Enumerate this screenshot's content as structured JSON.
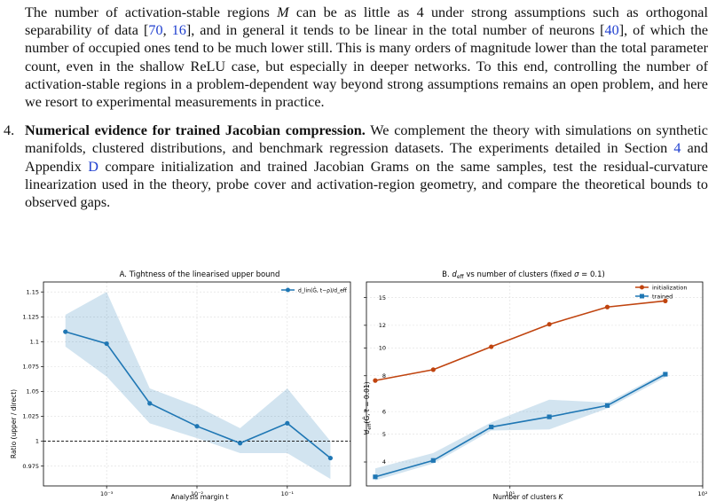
{
  "para1": {
    "s1": "The number of activation-stable regions ",
    "M": "M",
    "s2": " can be as little as 4 under strong assumptions such as orthogonal separability of data [",
    "r70": "70",
    "comma": ", ",
    "r16": "16",
    "s3": "], and in general it tends to be linear in the total number of neurons [",
    "r40": "40",
    "s4": "], of which the number of occupied ones tend to be much lower still. This is many orders of magnitude lower than the total parameter count, even in the shallow ReLU case, but especially in deeper networks. To this end, controlling the number of activation-stable regions in a problem-dependent way beyond strong assumptions remains an open problem, and here we resort to experimental measurements in practice."
  },
  "item4": {
    "number": "4.",
    "bold": "Numerical evidence for trained Jacobian compression.",
    "s1": " We complement the theory with simulations on synthetic manifolds, clustered distributions, and benchmark regression datasets. The experiments detailed in Section ",
    "sec": "4",
    "s2": " and Appendix ",
    "app": "D",
    "s3": " compare initialization and trained Jacobian Grams on the same samples, test the residual-curvature linearization used in the theory, probe cover and activation-region geometry, and compare the theoretical bounds to observed gaps."
  },
  "chart_data": [
    {
      "type": "line",
      "title": "A. Tightness of the linearised upper bound",
      "xlabel": "Analysis margin t",
      "ylabel": "Ratio (upper / direct)",
      "xscale": "log",
      "xlim": [
        0.0002,
        0.5
      ],
      "ylim": [
        0.955,
        1.16
      ],
      "yticks": [
        "0.975",
        "1",
        "1.025",
        "1.05",
        "1.075",
        "1.1",
        "1.125",
        "1.15"
      ],
      "xticks": [
        "10⁻³",
        "10⁻²",
        "10⁻¹"
      ],
      "grid": true,
      "legend_position": "top-right",
      "reference_line": 1.0,
      "series": [
        {
          "name": "d_lin(Ĝ, t−ρ)/d_eff",
          "color": "#1f77b4",
          "x": [
            0.00035,
            0.001,
            0.003,
            0.01,
            0.03,
            0.1,
            0.3
          ],
          "y": [
            1.11,
            1.098,
            1.038,
            1.015,
            0.998,
            1.018,
            0.983
          ],
          "lower": [
            1.095,
            1.065,
            1.018,
            1.003,
            0.988,
            0.988,
            0.962
          ],
          "upper": [
            1.127,
            1.15,
            1.053,
            1.035,
            1.013,
            1.053,
            1.0
          ]
        }
      ]
    },
    {
      "type": "line",
      "title": "B. d_eff vs number of clusters (fixed σ = 0.1)",
      "xlabel": "Number of clusters K",
      "ylabel": "d_eff(Ĝ, t = 0.01)",
      "xscale": "log",
      "yscale": "log",
      "xlim": [
        1.8,
        100
      ],
      "ylim": [
        3.3,
        17
      ],
      "yticks": [
        "4",
        "5",
        "6",
        "8",
        "10",
        "12",
        "15"
      ],
      "xticks": [
        "10¹",
        "10²"
      ],
      "grid": true,
      "legend_position": "top-right",
      "series": [
        {
          "name": "initialization",
          "color": "#c0440f",
          "marker": "circle",
          "x": [
            2,
            4,
            8,
            16,
            32,
            64
          ],
          "y": [
            7.7,
            8.4,
            10.1,
            12.1,
            13.9,
            14.6
          ]
        },
        {
          "name": "trained",
          "color": "#1f77b4",
          "marker": "square",
          "x": [
            2,
            4,
            8,
            16,
            32,
            64
          ],
          "y": [
            3.55,
            4.05,
            5.3,
            5.75,
            6.3,
            8.1
          ],
          "lower": [
            3.45,
            3.95,
            5.15,
            5.2,
            6.15,
            7.9
          ],
          "upper": [
            3.8,
            4.3,
            5.5,
            6.6,
            6.45,
            8.25
          ]
        }
      ]
    }
  ]
}
